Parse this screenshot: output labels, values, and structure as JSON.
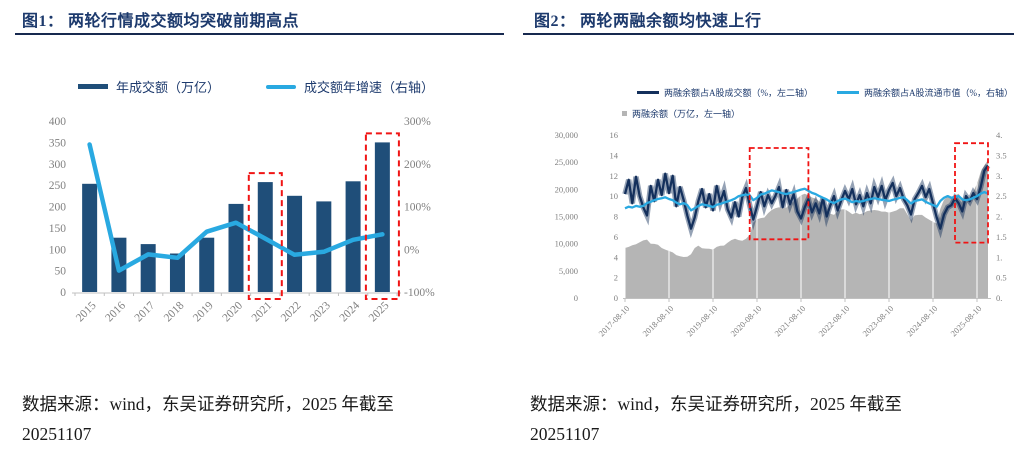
{
  "colors": {
    "title_navy": "#1d3a6d",
    "rule_navy": "#17294f",
    "bar_navy": "#1f4e79",
    "dark_line_navy": "#14305c",
    "light_blue": "#29a9e1",
    "area_gray": "#b5b5b5",
    "axis_gray": "#808080",
    "axis_line_gray": "#c0c0c0",
    "highlight_red": "#f01414"
  },
  "figure1": {
    "title": "图1： 两轮行情成交额均突破前期高点",
    "source_line1": "数据来源：wind，东吴证券研究所，2025 年截至",
    "source_line2": "20251107",
    "chart_data": {
      "type": "bar",
      "title": "图1： 两轮行情成交额均突破前期高点",
      "categories": [
        "2015",
        "2016",
        "2017",
        "2018",
        "2019",
        "2020",
        "2021",
        "2022",
        "2023",
        "2024",
        "2025"
      ],
      "series": [
        {
          "name": "年成交额（万亿）",
          "type": "bar",
          "axis": "left",
          "values": [
            253,
            127,
            112,
            90,
            127,
            206,
            257,
            225,
            212,
            259,
            350
          ]
        },
        {
          "name": "成交额年增速（右轴）",
          "type": "line",
          "axis": "right",
          "values": [
            245,
            -50,
            -12,
            -20,
            41,
            62,
            25,
            -13,
            -6,
            22,
            35
          ]
        }
      ],
      "left_axis": {
        "min": 0,
        "max": 400,
        "tick_labels": [
          "0",
          "50",
          "100",
          "150",
          "200",
          "250",
          "300",
          "350",
          "400"
        ]
      },
      "right_axis": {
        "min": -100,
        "max": 300,
        "tick_labels": [
          "-100%",
          "0%",
          "100%",
          "200%",
          "300%"
        ]
      },
      "highlights": [
        {
          "category": "2021"
        },
        {
          "category": "2025"
        }
      ],
      "grid": false,
      "legend_position": "top"
    }
  },
  "figure2": {
    "title": "图2： 两轮两融余额均快速上行",
    "source_line1": "数据来源：wind，东吴证券研究所，2025 年截至",
    "source_line2": "20251107",
    "chart_data": {
      "type": "line",
      "title": "图2： 两轮两融余额均快速上行",
      "x_start": "2017-08",
      "x_end": "2025-11",
      "points_per_series": 100,
      "x_tick_labels": [
        "2017-08-10",
        "2018-08-10",
        "2019-08-10",
        "2020-08-10",
        "2021-08-10",
        "2022-08-10",
        "2023-08-10",
        "2024-08-10",
        "2025-08-10"
      ],
      "series": [
        {
          "name": "两融余额占A股成交额（%，左二轴）",
          "type": "line",
          "axis": "left2",
          "values": [
            10.2,
            11.6,
            9.3,
            11.9,
            10.0,
            8.9,
            8.1,
            11.0,
            9.5,
            11.6,
            10.1,
            12.2,
            10.3,
            12.0,
            9.0,
            10.9,
            9.6,
            8.1,
            6.8,
            7.9,
            9.5,
            10.7,
            8.9,
            10.2,
            8.6,
            11.0,
            9.4,
            10.5,
            8.7,
            7.9,
            9.4,
            8.0,
            9.9,
            10.8,
            9.1,
            7.7,
            9.0,
            10.4,
            9.0,
            10.1,
            9.3,
            10.0,
            10.9,
            8.9,
            10.6,
            9.2,
            10.2,
            8.5,
            7.8,
            8.9,
            9.7,
            8.4,
            9.3,
            8.3,
            9.8,
            8.0,
            9.1,
            10.0,
            8.6,
            9.6,
            10.5,
            9.7,
            10.7,
            9.2,
            10.1,
            9.0,
            10.3,
            9.3,
            10.9,
            9.9,
            11.0,
            9.6,
            10.6,
            11.3,
            10.0,
            10.8,
            9.7,
            9.1,
            8.2,
            9.7,
            10.3,
            11.0,
            9.9,
            10.7,
            9.3,
            7.9,
            6.8,
            8.2,
            8.9,
            9.1,
            9.8,
            9.3,
            8.5,
            10.0,
            9.5,
            10.3,
            9.7,
            10.9,
            12.5,
            13.0
          ]
        },
        {
          "name": "两融余额占A股流通市值（%，右轴）",
          "type": "line",
          "axis": "right",
          "values": [
            2.2,
            2.24,
            2.22,
            2.26,
            2.24,
            2.26,
            2.33,
            2.36,
            2.4,
            2.43,
            2.45,
            2.47,
            2.43,
            2.4,
            2.34,
            2.3,
            2.33,
            2.28,
            2.15,
            2.2,
            2.26,
            2.3,
            2.28,
            2.26,
            2.23,
            2.29,
            2.31,
            2.34,
            2.37,
            2.4,
            2.44,
            2.5,
            2.52,
            2.54,
            2.52,
            2.4,
            2.46,
            2.54,
            2.56,
            2.6,
            2.64,
            2.62,
            2.6,
            2.57,
            2.55,
            2.58,
            2.6,
            2.63,
            2.66,
            2.68,
            2.63,
            2.58,
            2.55,
            2.5,
            2.46,
            2.42,
            2.36,
            2.33,
            2.38,
            2.42,
            2.44,
            2.4,
            2.35,
            2.38,
            2.36,
            2.38,
            2.41,
            2.43,
            2.45,
            2.43,
            2.41,
            2.4,
            2.38,
            2.41,
            2.43,
            2.46,
            2.47,
            2.4,
            2.32,
            2.38,
            2.4,
            2.42,
            2.36,
            2.32,
            2.28,
            2.24,
            2.38,
            2.46,
            2.5,
            2.46,
            2.48,
            2.5,
            2.42,
            2.4,
            2.42,
            2.46,
            2.5,
            2.56,
            2.6,
            2.56
          ]
        },
        {
          "name": "两融余额（万亿，左一轴）",
          "type": "area",
          "axis": "left1",
          "values": [
            9200,
            9400,
            9700,
            9900,
            10250,
            10600,
            10750,
            10000,
            9950,
            9800,
            9200,
            8900,
            8650,
            8400,
            7900,
            7700,
            7550,
            7600,
            8050,
            9200,
            9650,
            9150,
            9100,
            9050,
            8900,
            9400,
            9600,
            9650,
            10200,
            10650,
            10900,
            10650,
            10550,
            10900,
            11600,
            13900,
            14500,
            14700,
            14800,
            15600,
            16200,
            16500,
            16700,
            16500,
            16600,
            17300,
            17800,
            18300,
            18900,
            19200,
            18900,
            18500,
            18300,
            17800,
            17300,
            16700,
            15500,
            15300,
            16000,
            16300,
            16300,
            15900,
            15400,
            15700,
            15400,
            15600,
            16000,
            16100,
            16200,
            16100,
            15900,
            15900,
            15700,
            15900,
            16100,
            16500,
            16500,
            15400,
            14300,
            15200,
            15300,
            15300,
            14800,
            14400,
            14000,
            13700,
            16400,
            18100,
            18600,
            18400,
            18900,
            19200,
            18100,
            18200,
            18500,
            19600,
            21000,
            23200,
            24400,
            25400
          ]
        }
      ],
      "left1_axis": {
        "min": 0,
        "max": 30000,
        "tick_labels": [
          "0",
          "5,000",
          "10,000",
          "15,000",
          "20,000",
          "25,000",
          "30,000"
        ]
      },
      "left2_axis": {
        "min": 0,
        "max": 16,
        "tick_labels": [
          "0",
          "2",
          "4",
          "6",
          "8",
          "10",
          "12",
          "14",
          "16"
        ]
      },
      "right_axis": {
        "min": 0,
        "max": 4,
        "tick_labels": [
          "0.",
          "0.5",
          "1.",
          "1.5",
          "2.",
          "2.5",
          "3.",
          "3.5",
          "4."
        ]
      },
      "highlights": [
        {
          "from": "2020-06",
          "to": "2021-10",
          "y_top_frac": 0.92,
          "y_bottom_frac": 0.36
        },
        {
          "from": "2025-02",
          "to": "2025-11",
          "y_top_frac": 0.95,
          "y_bottom_frac": 0.34
        }
      ],
      "grid": false,
      "legend_position": "top"
    }
  }
}
